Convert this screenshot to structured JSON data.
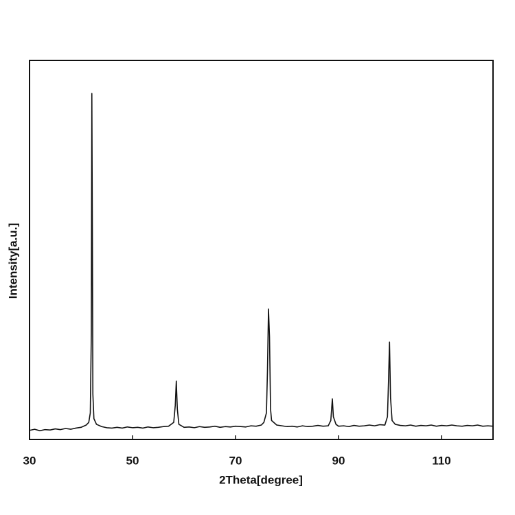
{
  "chart_data": {
    "type": "line",
    "x_label": "2Theta[degree]",
    "y_label": "Intensity[a.u.]",
    "color": "#111111",
    "xlim": [
      30,
      120
    ],
    "xticks": [
      30,
      50,
      70,
      90,
      110
    ],
    "ylim": [
      0,
      100
    ],
    "x": [
      30,
      31,
      32,
      33,
      34,
      35,
      36,
      37,
      38,
      39,
      40,
      41,
      41.5,
      41.8,
      42.0,
      42.1,
      42.2,
      42.3,
      42.5,
      43,
      44,
      45,
      46,
      47,
      48,
      49,
      50,
      51,
      52,
      53,
      54,
      55,
      56,
      57,
      58,
      58.3,
      58.5,
      58.7,
      59,
      60,
      61,
      62,
      63,
      64,
      65,
      66,
      67,
      68,
      69,
      70,
      71,
      72,
      73,
      74,
      75,
      75.5,
      76,
      76.2,
      76.4,
      76.6,
      76.8,
      77,
      78,
      79,
      80,
      81,
      82,
      83,
      84,
      85,
      86,
      87,
      88,
      88.5,
      88.8,
      89,
      89.5,
      90,
      91,
      92,
      93,
      94,
      95,
      96,
      97,
      98,
      99,
      99.5,
      99.7,
      99.9,
      100.1,
      100.4,
      101,
      102,
      103,
      104,
      105,
      106,
      107,
      108,
      109,
      110,
      111,
      112,
      113,
      114,
      115,
      116,
      117,
      118,
      119,
      120
    ],
    "values": [
      2.4,
      2.7,
      2.3,
      2.6,
      2.5,
      2.8,
      2.6,
      2.9,
      2.7,
      3.0,
      3.2,
      3.8,
      4.5,
      7,
      28,
      91.3,
      56,
      12,
      5.5,
      4.0,
      3.4,
      3.1,
      3.0,
      3.2,
      3.0,
      3.3,
      3.1,
      3.2,
      3.0,
      3.3,
      3.1,
      3.2,
      3.4,
      3.5,
      4.5,
      9,
      15.4,
      8,
      4,
      3.2,
      3.3,
      3.1,
      3.4,
      3.2,
      3.3,
      3.5,
      3.2,
      3.4,
      3.3,
      3.5,
      3.4,
      3.3,
      3.6,
      3.5,
      3.8,
      4.5,
      7,
      18,
      34.4,
      27,
      8,
      5,
      3.8,
      3.6,
      3.4,
      3.5,
      3.3,
      3.6,
      3.4,
      3.5,
      3.7,
      3.5,
      3.6,
      5,
      10.7,
      6,
      4,
      3.5,
      3.6,
      3.4,
      3.7,
      3.5,
      3.6,
      3.8,
      3.6,
      3.9,
      3.8,
      6,
      15,
      25.7,
      11,
      5,
      4,
      3.7,
      3.6,
      3.8,
      3.5,
      3.7,
      3.6,
      3.8,
      3.5,
      3.7,
      3.6,
      3.8,
      3.6,
      3.5,
      3.7,
      3.6,
      3.8,
      3.5,
      3.6,
      3.5
    ]
  }
}
